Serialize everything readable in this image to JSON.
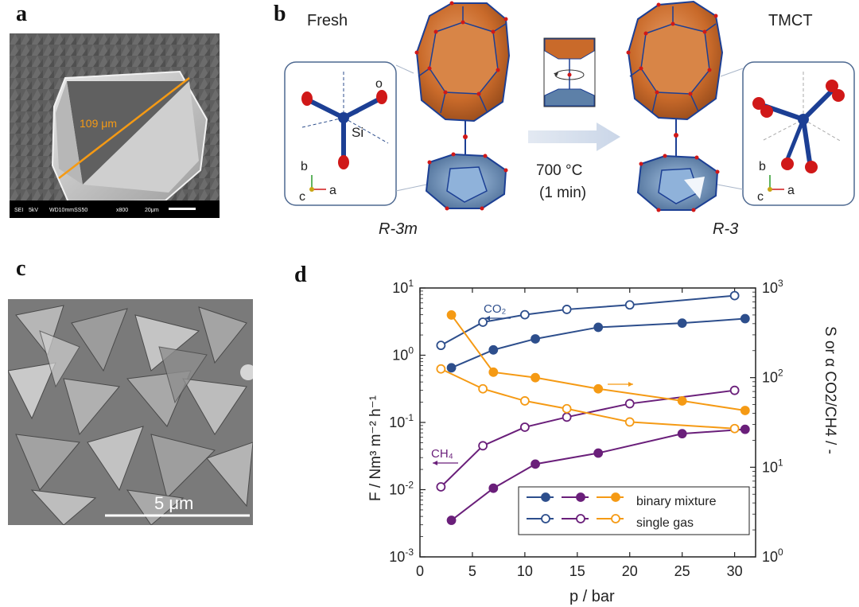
{
  "panel_a": {
    "letter": "a",
    "measure_label": "109 μm",
    "sem_bar": {
      "detector": "SEI",
      "voltage": "5kV",
      "settings": "WD10mmSS50",
      "magnification": "x800",
      "scale": "20μm"
    }
  },
  "panel_b": {
    "letter": "b",
    "fresh_label": "Fresh",
    "tmct_label": "TMCT",
    "left_axes": {
      "b": "b",
      "c": "c",
      "a": "a"
    },
    "right_axes": {
      "b": "b",
      "c": "c",
      "a": "a"
    },
    "atom_o": "o",
    "atom_si": "Si",
    "condition_temp": "700 °C",
    "condition_time": "(1 min)",
    "space_group_left": "R-3m",
    "space_group_right": "R-3",
    "colors": {
      "cage": "#c96a2a",
      "small_cage": "#5d80a8",
      "oxygen": "#d01818",
      "silicon": "#1c3f94",
      "arrow": "#dce3ee"
    }
  },
  "panel_c": {
    "letter": "c",
    "scale_label": "5 μm"
  },
  "panel_d": {
    "letter": "d",
    "label_co2": "CO₂",
    "label_ch4": "CH₄",
    "y_left_label": "F / Nm³ m⁻² h⁻¹",
    "y_right_label": "S or α CO2/CH4 / -",
    "legend_binary": "binary mixture",
    "legend_single": "single gas"
  },
  "chart_data": {
    "type": "line",
    "title": "",
    "xlabel": "p / bar",
    "ylabel": "F / Nm3 m-2 h-1",
    "ylabel_right": "S or α CO2/CH4 / -",
    "xlim": [
      0,
      32
    ],
    "xticks": [
      0,
      5,
      10,
      15,
      20,
      25,
      30
    ],
    "ylim_left_log": [
      0.001,
      10
    ],
    "yticks_left": [
      "10-3",
      "10-2",
      "10-1",
      "100",
      "101"
    ],
    "ylim_right_log": [
      1,
      1000
    ],
    "yticks_right": [
      "100",
      "101",
      "102",
      "103"
    ],
    "legend": [
      "binary mixture",
      "single gas"
    ],
    "series": [
      {
        "name": "CO2 single gas",
        "axis": "left",
        "color": "#2d4e8c",
        "filled": false,
        "x": [
          2,
          6,
          10,
          14,
          20,
          30
        ],
        "y": [
          1.4,
          3.1,
          4.0,
          4.8,
          5.6,
          7.7
        ]
      },
      {
        "name": "CO2 binary mixture",
        "axis": "left",
        "color": "#2d4e8c",
        "filled": true,
        "x": [
          3,
          7,
          11,
          17,
          25,
          31
        ],
        "y": [
          0.65,
          1.2,
          1.75,
          2.6,
          3.0,
          3.5
        ]
      },
      {
        "name": "CH4 single gas",
        "axis": "left",
        "color": "#6a1f7a",
        "filled": false,
        "x": [
          2,
          6,
          10,
          14,
          20,
          30
        ],
        "y": [
          0.011,
          0.045,
          0.085,
          0.12,
          0.19,
          0.3
        ]
      },
      {
        "name": "CH4 binary mixture",
        "axis": "left",
        "color": "#6a1f7a",
        "filled": true,
        "x": [
          3,
          7,
          11,
          17,
          25,
          31
        ],
        "y": [
          0.0035,
          0.0105,
          0.024,
          0.035,
          0.068,
          0.079
        ]
      },
      {
        "name": "Selectivity binary mixture",
        "axis": "right",
        "color": "#f59a14",
        "filled": true,
        "x": [
          3,
          7,
          11,
          17,
          25,
          31
        ],
        "y": [
          500,
          115,
          100,
          75,
          55,
          43
        ]
      },
      {
        "name": "Selectivity single gas",
        "axis": "right",
        "color": "#f59a14",
        "filled": false,
        "x": [
          2,
          6,
          10,
          14,
          20,
          30
        ],
        "y": [
          125,
          75,
          55,
          45,
          32,
          27
        ]
      }
    ]
  }
}
